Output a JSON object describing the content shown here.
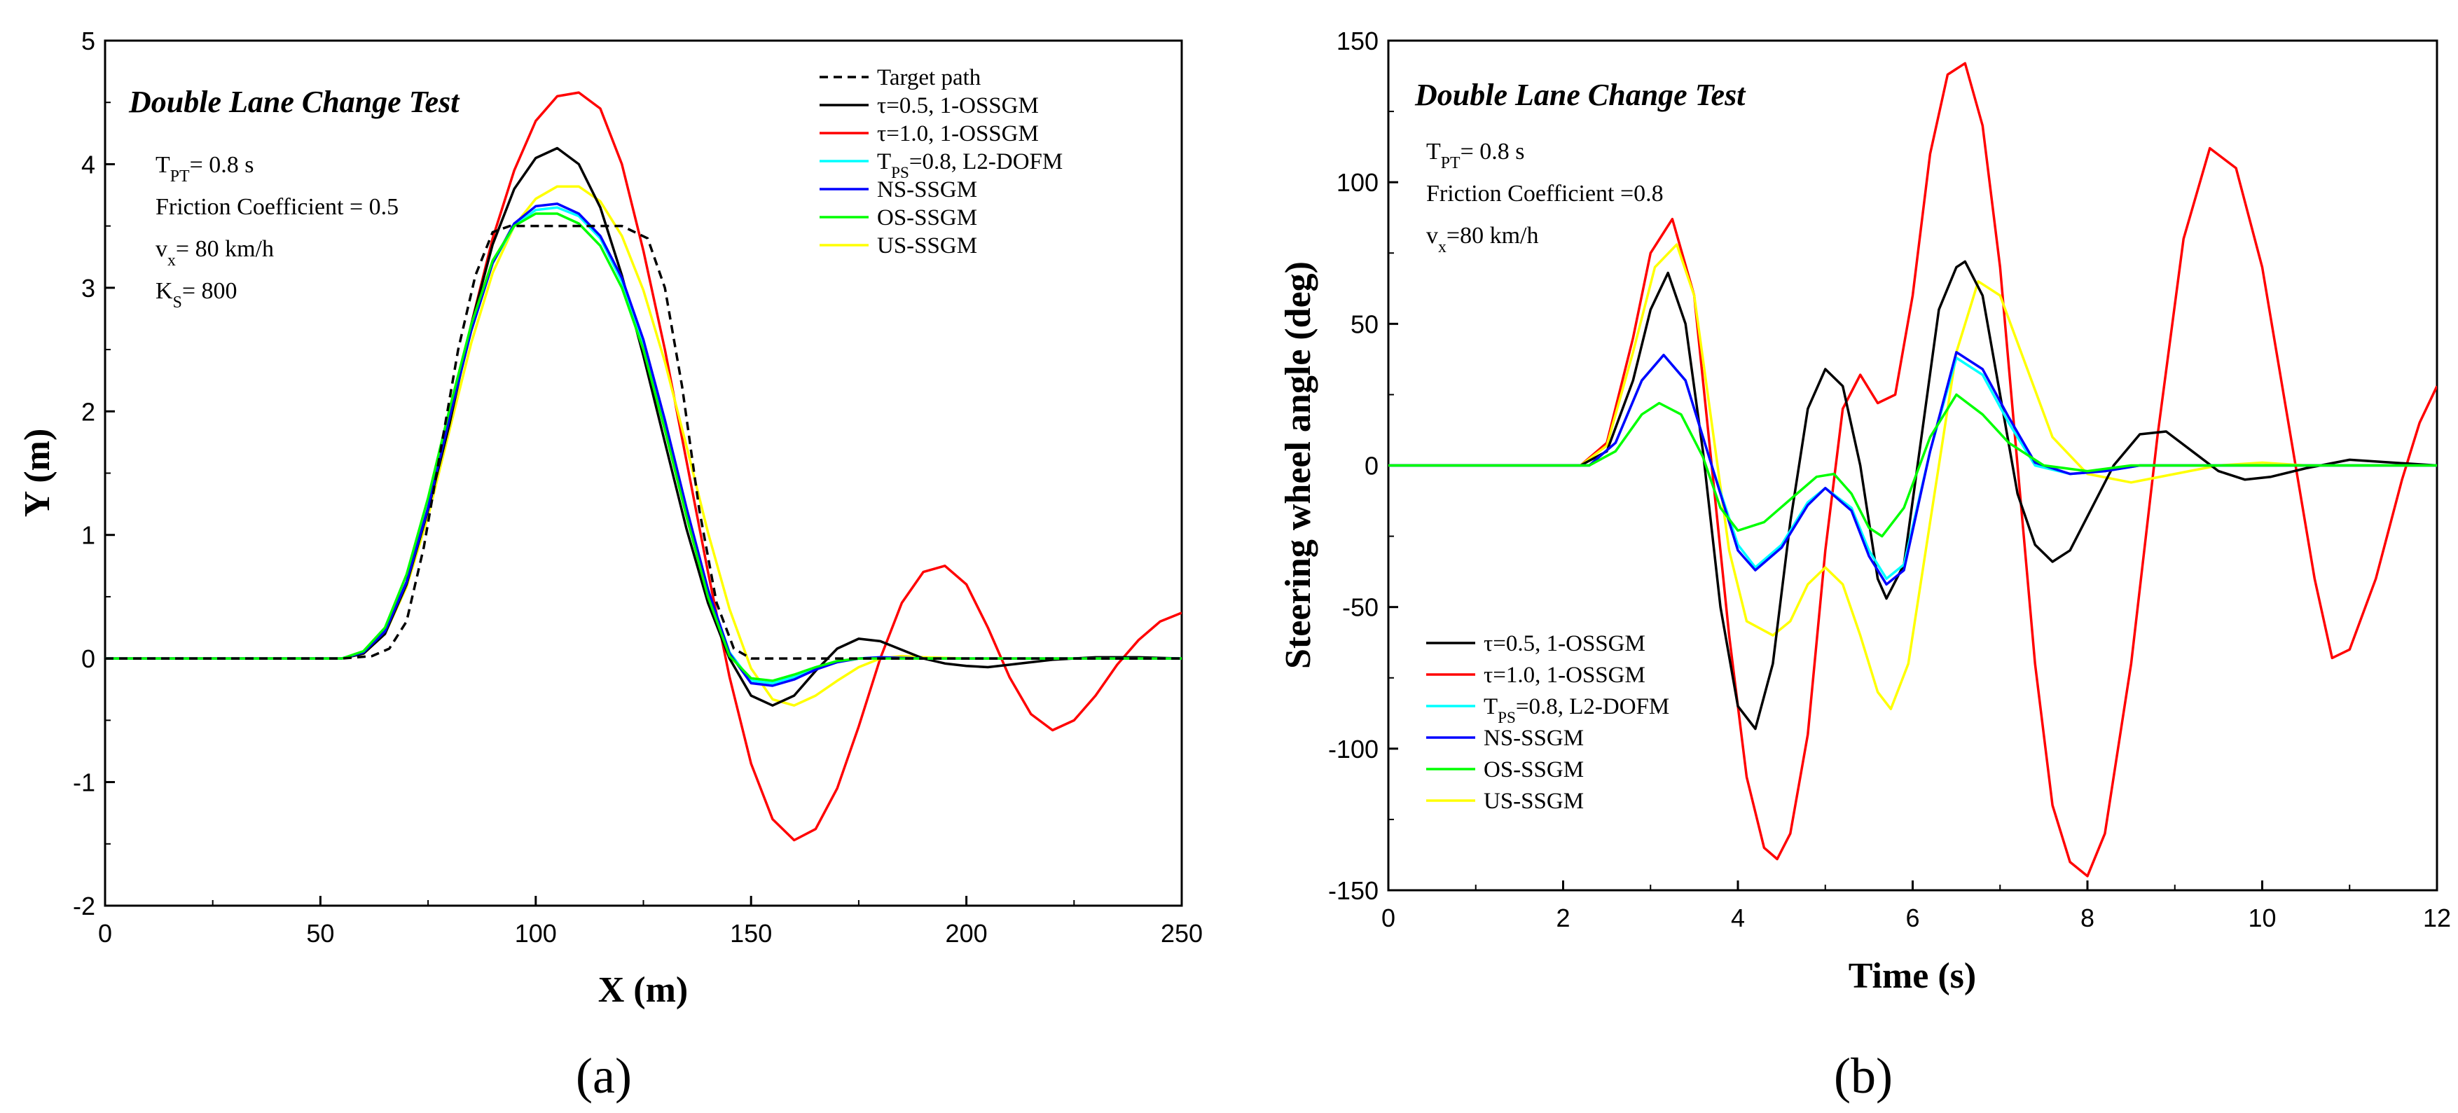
{
  "colors": {
    "target": "#000000",
    "tau05": "#000000",
    "tau10": "#ff0000",
    "tps08": "#00ffff",
    "ns": "#0000ff",
    "os": "#00ff00",
    "us": "#ffff00"
  },
  "chart_data": [
    {
      "type": "line",
      "panel_label": "(a)",
      "title": "Double Lane Change Test",
      "xlabel": "X (m)",
      "ylabel": "Y (m)",
      "xlim": [
        0,
        250
      ],
      "ylim": [
        -2,
        5
      ],
      "xticks": [
        0,
        50,
        100,
        150,
        200,
        250
      ],
      "yticks": [
        -2,
        -1,
        0,
        1,
        2,
        3,
        4,
        5
      ],
      "legend_position": "top-right",
      "annotations": [
        "T_PT= 0.8 s",
        "Friction Coefficient = 0.5",
        "v_x= 80 km/h",
        "K_S= 800"
      ],
      "annotations_display": [
        {
          "main": "T",
          "sub": "PT",
          "rest": "= 0.8 s"
        },
        {
          "main": "Friction Coefficient = 0.5",
          "sub": "",
          "rest": ""
        },
        {
          "main": "v",
          "sub": "x",
          "rest": "= 80 km/h"
        },
        {
          "main": "K",
          "sub": "S",
          "rest": "= 800"
        }
      ],
      "series": [
        {
          "name": "Target path",
          "key": "target",
          "dashed": true,
          "legend": {
            "main": "Target path",
            "sub": "",
            "rest": ""
          },
          "x": [
            0,
            55,
            62,
            66,
            70,
            74,
            78,
            82,
            86,
            90,
            94,
            100,
            110,
            120,
            126,
            130,
            134,
            138,
            142,
            146,
            150,
            155,
            250
          ],
          "y": [
            0,
            0,
            0.02,
            0.08,
            0.3,
            0.9,
            1.7,
            2.5,
            3.1,
            3.45,
            3.5,
            3.5,
            3.5,
            3.5,
            3.4,
            3.0,
            2.2,
            1.2,
            0.45,
            0.08,
            0,
            0,
            0
          ]
        },
        {
          "name": "τ=0.5, 1-OSSGM",
          "key": "tau05",
          "legend": {
            "main": "τ=0.5, 1-OSSGM",
            "sub": "",
            "rest": ""
          },
          "x": [
            0,
            55,
            60,
            65,
            70,
            75,
            80,
            85,
            90,
            95,
            100,
            105,
            110,
            115,
            120,
            125,
            130,
            135,
            140,
            145,
            150,
            155,
            160,
            165,
            170,
            175,
            180,
            185,
            190,
            195,
            200,
            205,
            210,
            220,
            230,
            240,
            250
          ],
          "y": [
            0,
            0,
            0.04,
            0.2,
            0.6,
            1.2,
            1.9,
            2.7,
            3.35,
            3.8,
            4.05,
            4.13,
            4.0,
            3.65,
            3.1,
            2.45,
            1.75,
            1.05,
            0.45,
            0.0,
            -0.3,
            -0.38,
            -0.3,
            -0.1,
            0.08,
            0.16,
            0.14,
            0.07,
            0.0,
            -0.04,
            -0.06,
            -0.07,
            -0.05,
            -0.01,
            0.01,
            0.01,
            0
          ]
        },
        {
          "name": "τ=1.0, 1-OSSGM",
          "key": "tau10",
          "legend": {
            "main": "τ=1.0, 1-OSSGM",
            "sub": "",
            "rest": ""
          },
          "x": [
            0,
            55,
            60,
            65,
            70,
            75,
            80,
            85,
            90,
            95,
            100,
            105,
            110,
            115,
            120,
            125,
            130,
            135,
            140,
            145,
            150,
            155,
            160,
            165,
            170,
            175,
            180,
            185,
            190,
            195,
            200,
            205,
            210,
            215,
            220,
            225,
            230,
            235,
            240,
            245,
            250
          ],
          "y": [
            0,
            0,
            0.04,
            0.2,
            0.6,
            1.2,
            1.9,
            2.7,
            3.4,
            3.95,
            4.35,
            4.55,
            4.58,
            4.45,
            4.0,
            3.3,
            2.5,
            1.6,
            0.7,
            -0.15,
            -0.85,
            -1.3,
            -1.47,
            -1.38,
            -1.05,
            -0.55,
            0.0,
            0.45,
            0.7,
            0.75,
            0.6,
            0.25,
            -0.15,
            -0.45,
            -0.58,
            -0.5,
            -0.3,
            -0.05,
            0.15,
            0.3,
            0.37
          ]
        },
        {
          "name": "T_PS=0.8, L2-DOFM",
          "key": "tps08",
          "legend": {
            "main": "T",
            "sub": "PS",
            "rest": "=0.8, L2-DOFM"
          },
          "x": [
            0,
            55,
            60,
            65,
            70,
            75,
            80,
            85,
            90,
            95,
            100,
            105,
            110,
            115,
            120,
            125,
            130,
            135,
            140,
            145,
            150,
            155,
            160,
            165,
            170,
            175,
            180,
            190,
            200,
            250
          ],
          "y": [
            0,
            0,
            0.05,
            0.22,
            0.62,
            1.22,
            1.95,
            2.65,
            3.2,
            3.5,
            3.63,
            3.65,
            3.58,
            3.4,
            3.05,
            2.55,
            1.9,
            1.2,
            0.55,
            0.05,
            -0.18,
            -0.2,
            -0.15,
            -0.08,
            -0.03,
            0.0,
            0.01,
            0.0,
            0,
            0
          ]
        },
        {
          "name": "NS-SSGM",
          "key": "ns",
          "legend": {
            "main": "NS-SSGM",
            "sub": "",
            "rest": ""
          },
          "x": [
            0,
            55,
            60,
            65,
            70,
            75,
            80,
            85,
            90,
            95,
            100,
            105,
            110,
            115,
            120,
            125,
            130,
            135,
            140,
            145,
            150,
            155,
            160,
            165,
            170,
            175,
            180,
            190,
            200,
            250
          ],
          "y": [
            0,
            0,
            0.05,
            0.22,
            0.62,
            1.22,
            1.95,
            2.65,
            3.2,
            3.52,
            3.66,
            3.68,
            3.6,
            3.42,
            3.08,
            2.58,
            1.93,
            1.22,
            0.56,
            0.04,
            -0.2,
            -0.22,
            -0.17,
            -0.09,
            -0.03,
            0.0,
            0.01,
            0.0,
            0,
            0
          ]
        },
        {
          "name": "OS-SSGM",
          "key": "os",
          "legend": {
            "main": "OS-SSGM",
            "sub": "",
            "rest": ""
          },
          "x": [
            0,
            55,
            60,
            65,
            70,
            75,
            80,
            85,
            90,
            95,
            100,
            105,
            110,
            115,
            120,
            125,
            130,
            135,
            140,
            145,
            150,
            155,
            160,
            165,
            170,
            175,
            180,
            190,
            200,
            250
          ],
          "y": [
            0,
            0,
            0.06,
            0.25,
            0.68,
            1.3,
            2.02,
            2.7,
            3.22,
            3.5,
            3.6,
            3.6,
            3.52,
            3.34,
            3.0,
            2.5,
            1.85,
            1.15,
            0.5,
            0.02,
            -0.16,
            -0.18,
            -0.13,
            -0.07,
            -0.02,
            0.0,
            0.0,
            0.0,
            0,
            0
          ]
        },
        {
          "name": "US-SSGM",
          "key": "us",
          "legend": {
            "main": "US-SSGM",
            "sub": "",
            "rest": ""
          },
          "x": [
            0,
            55,
            60,
            65,
            70,
            75,
            80,
            85,
            90,
            95,
            100,
            105,
            110,
            115,
            120,
            125,
            130,
            135,
            140,
            145,
            150,
            155,
            160,
            165,
            170,
            175,
            180,
            185,
            190,
            200,
            250
          ],
          "y": [
            0,
            0,
            0.04,
            0.2,
            0.58,
            1.15,
            1.85,
            2.55,
            3.12,
            3.5,
            3.72,
            3.82,
            3.82,
            3.7,
            3.42,
            2.98,
            2.4,
            1.72,
            1.02,
            0.4,
            -0.08,
            -0.33,
            -0.38,
            -0.3,
            -0.18,
            -0.07,
            0.0,
            0.02,
            0.01,
            0,
            0
          ]
        }
      ]
    },
    {
      "type": "line",
      "panel_label": "(b)",
      "title": "Double Lane Change Test",
      "xlabel": "Time (s)",
      "ylabel": "Steering wheel angle (deg)",
      "xlim": [
        0,
        12
      ],
      "ylim": [
        -150,
        150
      ],
      "xticks": [
        0,
        2,
        4,
        6,
        8,
        10,
        12
      ],
      "yticks": [
        -150,
        -100,
        -50,
        0,
        50,
        100,
        150
      ],
      "legend_position": "bottom-left",
      "annotations": [
        "T_PT= 0.8 s",
        "Friction Coefficient =0.8",
        "v_x=80 km/h"
      ],
      "annotations_display": [
        {
          "main": "T",
          "sub": "PT",
          "rest": "= 0.8 s"
        },
        {
          "main": "Friction Coefficient =0.8",
          "sub": "",
          "rest": ""
        },
        {
          "main": "v",
          "sub": "x",
          "rest": "=80 km/h"
        }
      ],
      "series": [
        {
          "name": "τ=0.5, 1-OSSGM",
          "key": "tau05",
          "legend": {
            "main": "τ=0.5, 1-OSSGM",
            "sub": "",
            "rest": ""
          },
          "x": [
            0,
            2.2,
            2.5,
            2.8,
            3.0,
            3.2,
            3.4,
            3.6,
            3.8,
            4.0,
            4.2,
            4.4,
            4.6,
            4.8,
            5.0,
            5.2,
            5.4,
            5.6,
            5.7,
            5.9,
            6.1,
            6.3,
            6.5,
            6.6,
            6.8,
            7.0,
            7.2,
            7.4,
            7.6,
            7.8,
            8.0,
            8.3,
            8.6,
            8.9,
            9.2,
            9.5,
            9.8,
            10.1,
            10.5,
            11.0,
            11.5,
            12.0
          ],
          "y": [
            0,
            0,
            5,
            30,
            55,
            68,
            50,
            5,
            -50,
            -85,
            -93,
            -70,
            -20,
            20,
            34,
            28,
            0,
            -40,
            -47,
            -35,
            10,
            55,
            70,
            72,
            60,
            25,
            -10,
            -28,
            -34,
            -30,
            -18,
            0,
            11,
            12,
            5,
            -2,
            -5,
            -4,
            -1,
            2,
            1,
            0
          ]
        },
        {
          "name": "τ=1.0, 1-OSSGM",
          "key": "tau10",
          "legend": {
            "main": "τ=1.0, 1-OSSGM",
            "sub": "",
            "rest": ""
          },
          "x": [
            0,
            2.2,
            2.5,
            2.8,
            3.0,
            3.25,
            3.5,
            3.7,
            3.9,
            4.1,
            4.3,
            4.45,
            4.6,
            4.8,
            5.0,
            5.2,
            5.4,
            5.6,
            5.8,
            6.0,
            6.2,
            6.4,
            6.6,
            6.8,
            7.0,
            7.2,
            7.4,
            7.6,
            7.8,
            8.0,
            8.2,
            8.5,
            8.8,
            9.1,
            9.4,
            9.7,
            10.0,
            10.3,
            10.6,
            10.8,
            11.0,
            11.3,
            11.6,
            11.8,
            12.0
          ],
          "y": [
            0,
            0,
            8,
            45,
            75,
            87,
            60,
            0,
            -60,
            -110,
            -135,
            -139,
            -130,
            -95,
            -30,
            20,
            32,
            22,
            25,
            60,
            110,
            138,
            142,
            120,
            70,
            0,
            -70,
            -120,
            -140,
            -145,
            -130,
            -70,
            10,
            80,
            112,
            105,
            70,
            15,
            -40,
            -68,
            -65,
            -40,
            -5,
            15,
            28
          ]
        },
        {
          "name": "T_PS=0.8, L2-DOFM",
          "key": "tps08",
          "legend": {
            "main": "T",
            "sub": "PS",
            "rest": "=0.8, L2-DOFM"
          },
          "x": [
            0,
            2.3,
            2.6,
            2.9,
            3.15,
            3.4,
            3.7,
            4.0,
            4.2,
            4.5,
            4.8,
            5.0,
            5.3,
            5.5,
            5.7,
            5.9,
            6.2,
            6.5,
            6.8,
            7.1,
            7.4,
            7.8,
            8.2,
            8.6,
            12.0
          ],
          "y": [
            0,
            0,
            8,
            30,
            39,
            30,
            0,
            -28,
            -36,
            -28,
            -13,
            -8,
            -15,
            -30,
            -40,
            -35,
            5,
            38,
            32,
            15,
            0,
            -3,
            -2,
            0,
            0
          ]
        },
        {
          "name": "NS-SSGM",
          "key": "ns",
          "legend": {
            "main": "NS-SSGM",
            "sub": "",
            "rest": ""
          },
          "x": [
            0,
            2.3,
            2.6,
            2.9,
            3.15,
            3.4,
            3.7,
            4.0,
            4.2,
            4.5,
            4.8,
            5.0,
            5.3,
            5.5,
            5.7,
            5.9,
            6.2,
            6.5,
            6.8,
            7.1,
            7.4,
            7.8,
            8.2,
            8.6,
            12.0
          ],
          "y": [
            0,
            0,
            8,
            30,
            39,
            30,
            0,
            -30,
            -37,
            -29,
            -14,
            -8,
            -16,
            -32,
            -42,
            -37,
            5,
            40,
            34,
            17,
            1,
            -3,
            -2,
            0,
            0
          ]
        },
        {
          "name": "OS-SSGM",
          "key": "os",
          "legend": {
            "main": "OS-SSGM",
            "sub": "",
            "rest": ""
          },
          "x": [
            0,
            2.3,
            2.6,
            2.9,
            3.1,
            3.35,
            3.6,
            3.8,
            4.0,
            4.3,
            4.6,
            4.9,
            5.1,
            5.3,
            5.5,
            5.65,
            5.9,
            6.2,
            6.5,
            6.8,
            7.1,
            7.5,
            8.0,
            8.5,
            12.0
          ],
          "y": [
            0,
            0,
            5,
            18,
            22,
            18,
            3,
            -15,
            -23,
            -20,
            -12,
            -4,
            -3,
            -10,
            -22,
            -25,
            -15,
            10,
            25,
            18,
            8,
            0,
            -2,
            0,
            0
          ]
        },
        {
          "name": "US-SSGM",
          "key": "us",
          "legend": {
            "main": "US-SSGM",
            "sub": "",
            "rest": ""
          },
          "x": [
            0,
            2.2,
            2.5,
            2.8,
            3.05,
            3.3,
            3.5,
            3.7,
            3.9,
            4.1,
            4.4,
            4.6,
            4.8,
            5.0,
            5.2,
            5.4,
            5.6,
            5.75,
            5.95,
            6.2,
            6.5,
            6.75,
            7.0,
            7.3,
            7.6,
            8.0,
            8.5,
            9.0,
            9.5,
            10.0,
            10.5,
            12.0
          ],
          "y": [
            0,
            0,
            7,
            40,
            70,
            78,
            60,
            15,
            -30,
            -55,
            -60,
            -55,
            -42,
            -36,
            -42,
            -60,
            -80,
            -86,
            -70,
            -20,
            40,
            65,
            60,
            35,
            10,
            -3,
            -6,
            -3,
            0,
            1,
            0,
            0
          ]
        }
      ]
    }
  ]
}
